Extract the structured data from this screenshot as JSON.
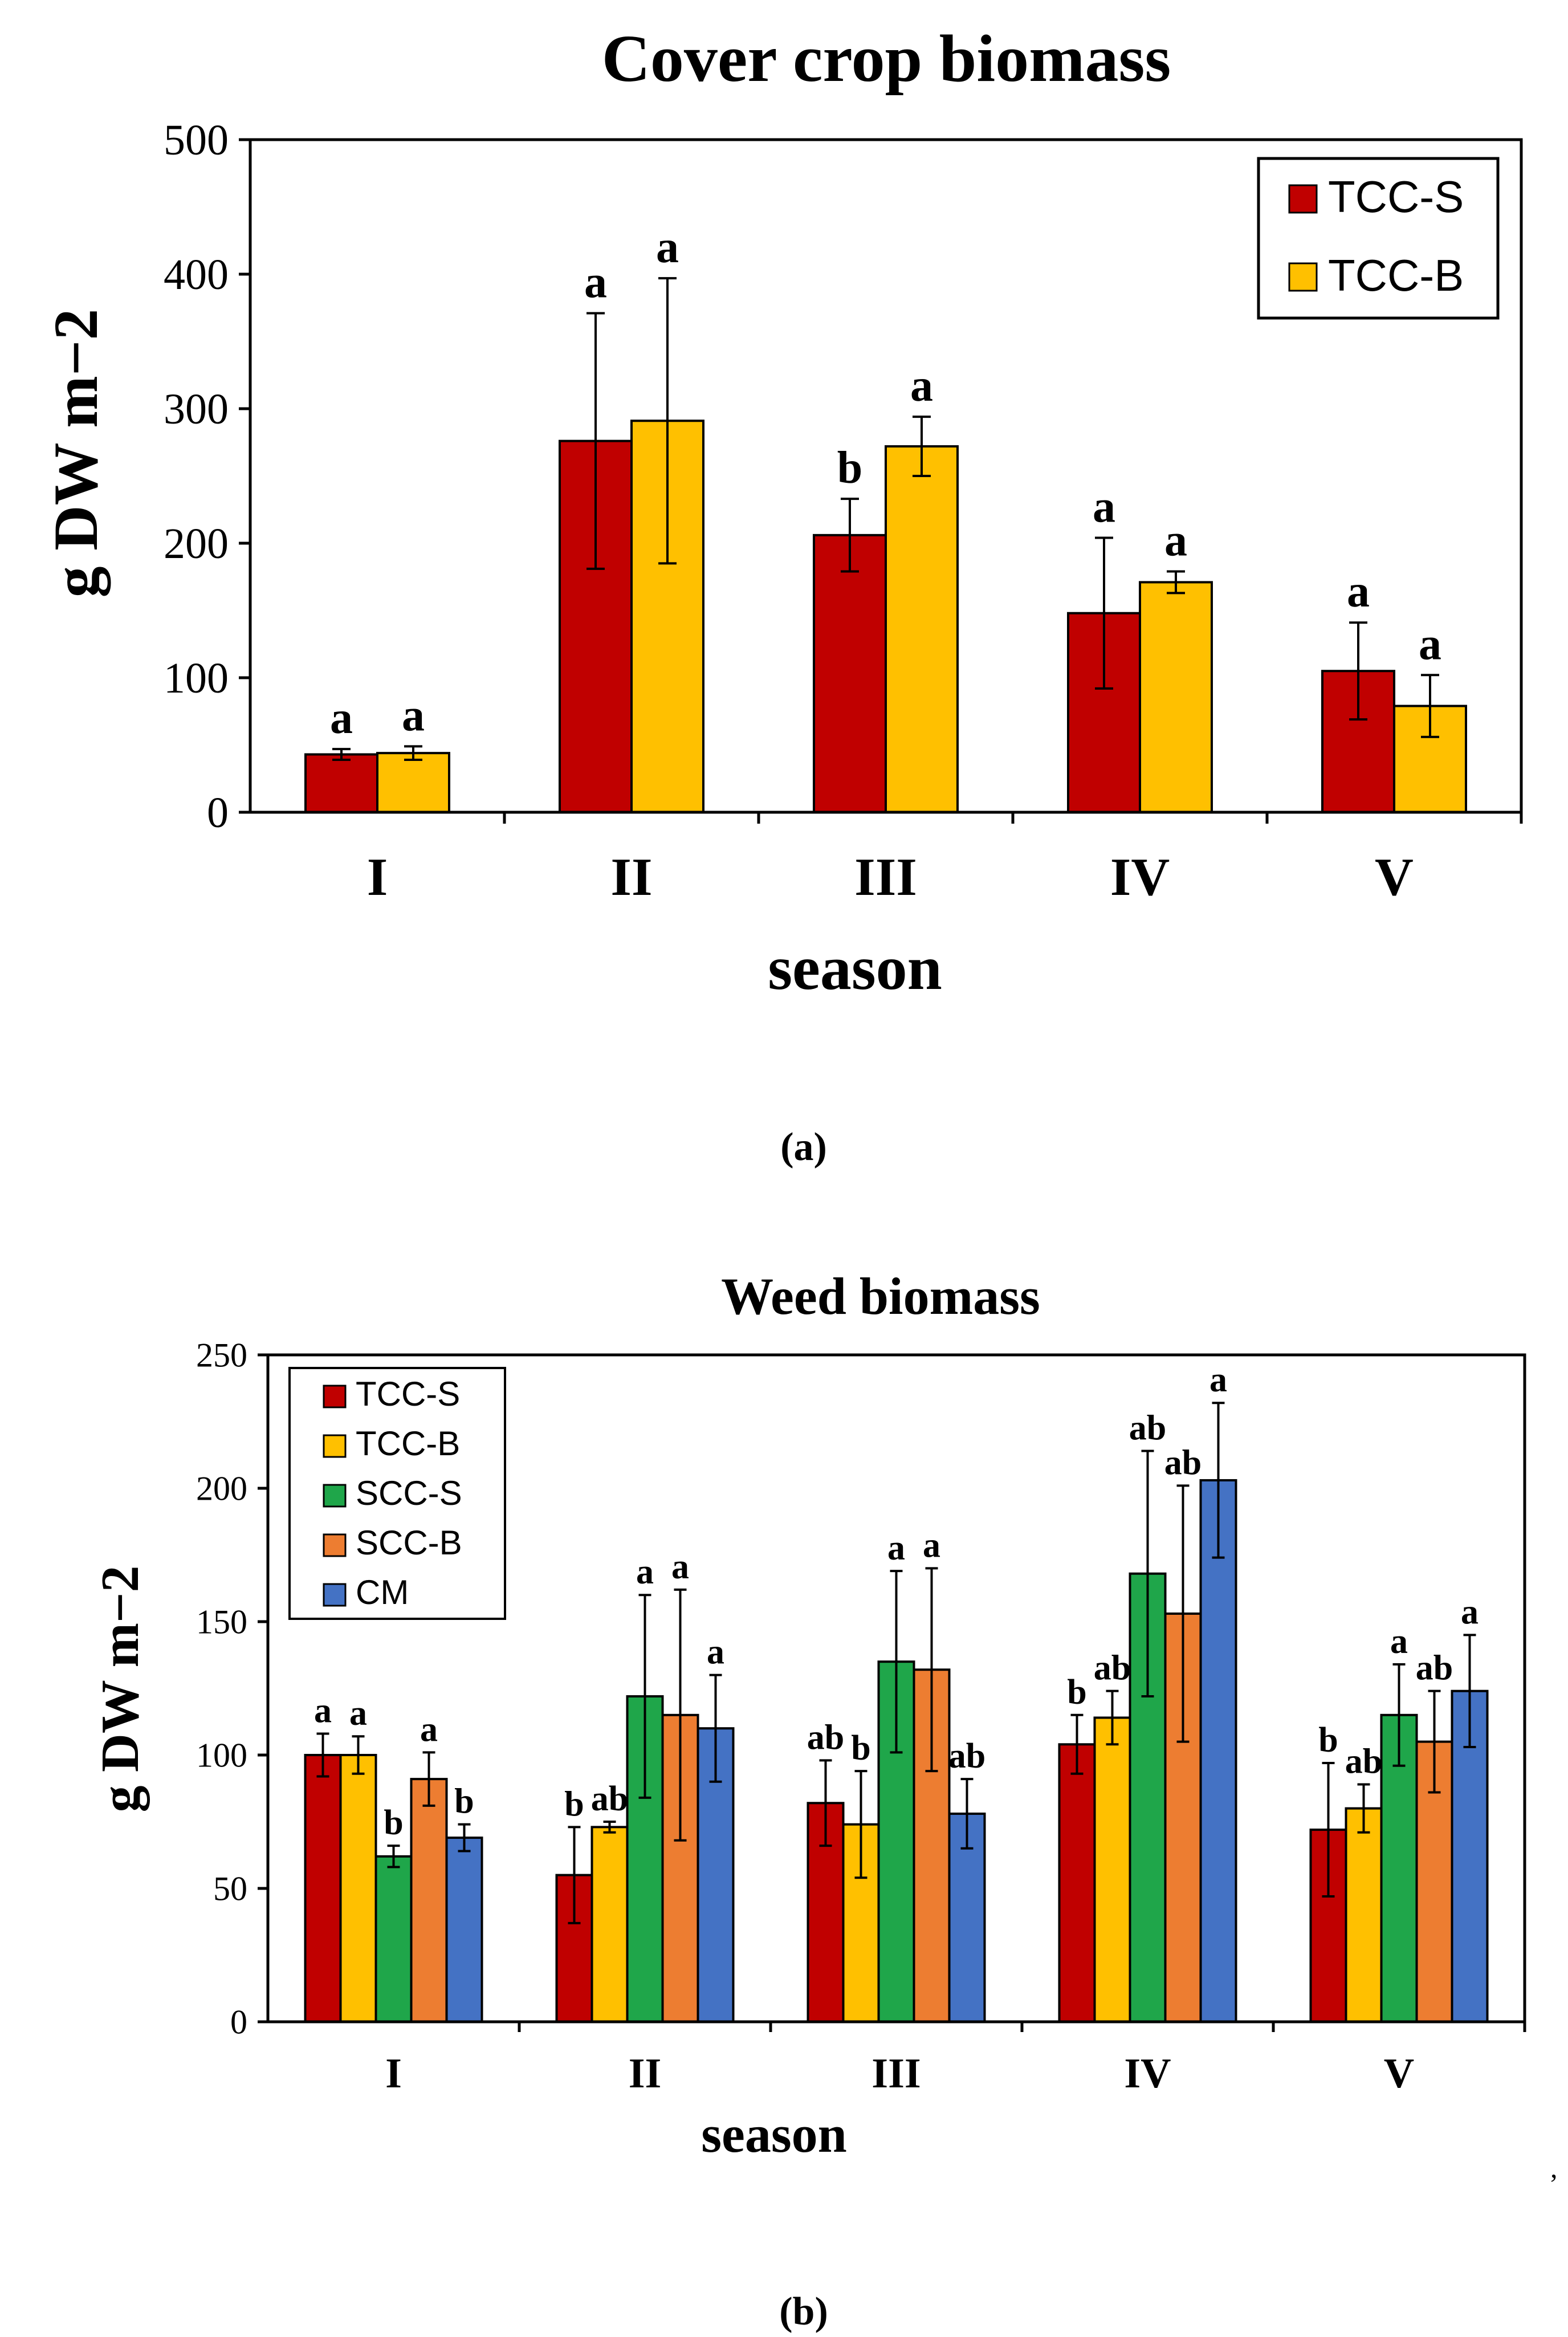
{
  "figure": {
    "panel_a_caption": "(a)",
    "panel_b_caption": "(b)",
    "stray_mark": ","
  },
  "colors": {
    "TCC-S": "#C00000",
    "TCC-B": "#FFC000",
    "SCC-S": "#1FA64A",
    "SCC-B": "#ED7D31",
    "CM": "#4472C4"
  },
  "chart_data": [
    {
      "type": "bar",
      "title": "Cover crop biomass",
      "xlabel": "season",
      "ylabel": "g DW m−2",
      "ylim": [
        0,
        500
      ],
      "yticks": [
        0,
        100,
        200,
        300,
        400,
        500
      ],
      "grid": false,
      "legend_position": "top-right",
      "categories": [
        "I",
        "II",
        "III",
        "IV",
        "V"
      ],
      "series": [
        {
          "name": "TCC-S",
          "values": [
            43,
            276,
            206,
            148,
            105
          ],
          "errors": [
            4,
            95,
            27,
            56,
            36
          ],
          "letters": [
            "a",
            "a",
            "b",
            "a",
            "a"
          ]
        },
        {
          "name": "TCC-B",
          "values": [
            44,
            291,
            272,
            171,
            79
          ],
          "errors": [
            5,
            106,
            22,
            8,
            23
          ],
          "letters": [
            "a",
            "a",
            "a",
            "a",
            "a"
          ]
        }
      ]
    },
    {
      "type": "bar",
      "title": "Weed biomass",
      "xlabel": "season",
      "ylabel": "g DW m−2",
      "ylim": [
        0,
        250
      ],
      "yticks": [
        0,
        50,
        100,
        150,
        200,
        250
      ],
      "grid": false,
      "legend_position": "top-left",
      "categories": [
        "I",
        "II",
        "III",
        "IV",
        "V"
      ],
      "series": [
        {
          "name": "TCC-S",
          "values": [
            100,
            55,
            82,
            104,
            72
          ],
          "errors": [
            8,
            18,
            16,
            11,
            25
          ],
          "letters": [
            "a",
            "b",
            "ab",
            "b",
            "b"
          ]
        },
        {
          "name": "TCC-B",
          "values": [
            100,
            73,
            74,
            114,
            80
          ],
          "errors": [
            7,
            2,
            20,
            10,
            9
          ],
          "letters": [
            "a",
            "ab",
            "b",
            "ab",
            "ab"
          ]
        },
        {
          "name": "SCC-S",
          "values": [
            62,
            122,
            135,
            168,
            115
          ],
          "errors": [
            4,
            38,
            34,
            46,
            19
          ],
          "letters": [
            "b",
            "a",
            "a",
            "ab",
            "a"
          ]
        },
        {
          "name": "SCC-B",
          "values": [
            91,
            115,
            132,
            153,
            105
          ],
          "errors": [
            10,
            47,
            38,
            48,
            19
          ],
          "letters": [
            "a",
            "a",
            "a",
            "ab",
            "ab"
          ]
        },
        {
          "name": "CM",
          "values": [
            69,
            110,
            78,
            203,
            124
          ],
          "errors": [
            5,
            20,
            13,
            29,
            21
          ],
          "letters": [
            "b",
            "a",
            "ab",
            "a",
            "a"
          ]
        }
      ]
    }
  ]
}
